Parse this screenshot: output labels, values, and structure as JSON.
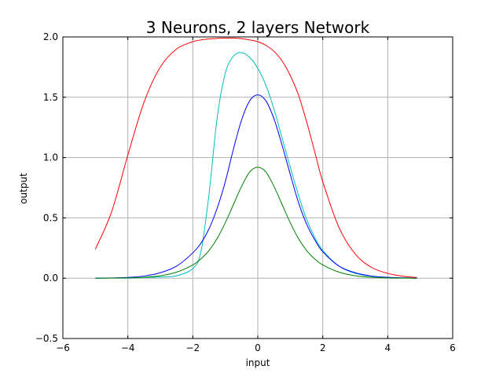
{
  "chart_data": {
    "type": "line",
    "title": "3 Neurons, 2 layers Network",
    "xlabel": "input",
    "ylabel": "output",
    "xlim": [
      -6,
      6
    ],
    "ylim": [
      -0.5,
      2.0
    ],
    "xticks": [
      -6,
      -4,
      -2,
      0,
      2,
      4,
      6
    ],
    "xtick_labels": [
      "−6",
      "−4",
      "−2",
      "0",
      "2",
      "4",
      "6"
    ],
    "yticks": [
      -0.5,
      0.0,
      0.5,
      1.0,
      1.5,
      2.0
    ],
    "ytick_labels": [
      "−0.5",
      "0.0",
      "0.5",
      "1.0",
      "1.5",
      "2.0"
    ],
    "grid": true,
    "x": [
      -5.0,
      -4.5,
      -4.0,
      -3.5,
      -3.0,
      -2.5,
      -2.0,
      -1.75,
      -1.5,
      -1.25,
      -1.0,
      -0.75,
      -0.5,
      -0.25,
      0.0,
      0.25,
      0.5,
      0.75,
      1.0,
      1.25,
      1.5,
      1.75,
      2.0,
      2.5,
      3.0,
      3.5,
      4.0,
      4.5,
      4.9
    ],
    "series": [
      {
        "name": "red",
        "color": "#ff0000",
        "values": [
          0.24,
          0.55,
          1.02,
          1.46,
          1.75,
          1.9,
          1.96,
          1.975,
          1.983,
          1.988,
          1.99,
          1.99,
          1.985,
          1.975,
          1.96,
          1.93,
          1.88,
          1.8,
          1.68,
          1.52,
          1.3,
          1.05,
          0.8,
          0.42,
          0.2,
          0.09,
          0.04,
          0.015,
          0.006
        ]
      },
      {
        "name": "cyan",
        "color": "#00bfbf",
        "values": [
          0.0,
          0.001,
          0.002,
          0.005,
          0.01,
          0.02,
          0.08,
          0.22,
          0.7,
          1.33,
          1.7,
          1.84,
          1.87,
          1.83,
          1.74,
          1.6,
          1.4,
          1.16,
          0.92,
          0.69,
          0.49,
          0.34,
          0.23,
          0.1,
          0.04,
          0.016,
          0.006,
          0.002,
          0.001
        ]
      },
      {
        "name": "blue",
        "color": "#0000ff",
        "values": [
          0.0,
          0.002,
          0.006,
          0.018,
          0.045,
          0.1,
          0.21,
          0.29,
          0.41,
          0.58,
          0.8,
          1.07,
          1.31,
          1.47,
          1.52,
          1.47,
          1.32,
          1.1,
          0.86,
          0.63,
          0.45,
          0.32,
          0.22,
          0.1,
          0.045,
          0.018,
          0.007,
          0.003,
          0.001
        ]
      },
      {
        "name": "green",
        "color": "#008000",
        "values": [
          0.0,
          0.001,
          0.003,
          0.008,
          0.02,
          0.05,
          0.11,
          0.16,
          0.23,
          0.33,
          0.46,
          0.61,
          0.76,
          0.88,
          0.92,
          0.88,
          0.76,
          0.61,
          0.46,
          0.33,
          0.23,
          0.16,
          0.11,
          0.05,
          0.02,
          0.008,
          0.003,
          0.001,
          0.0
        ]
      }
    ]
  }
}
